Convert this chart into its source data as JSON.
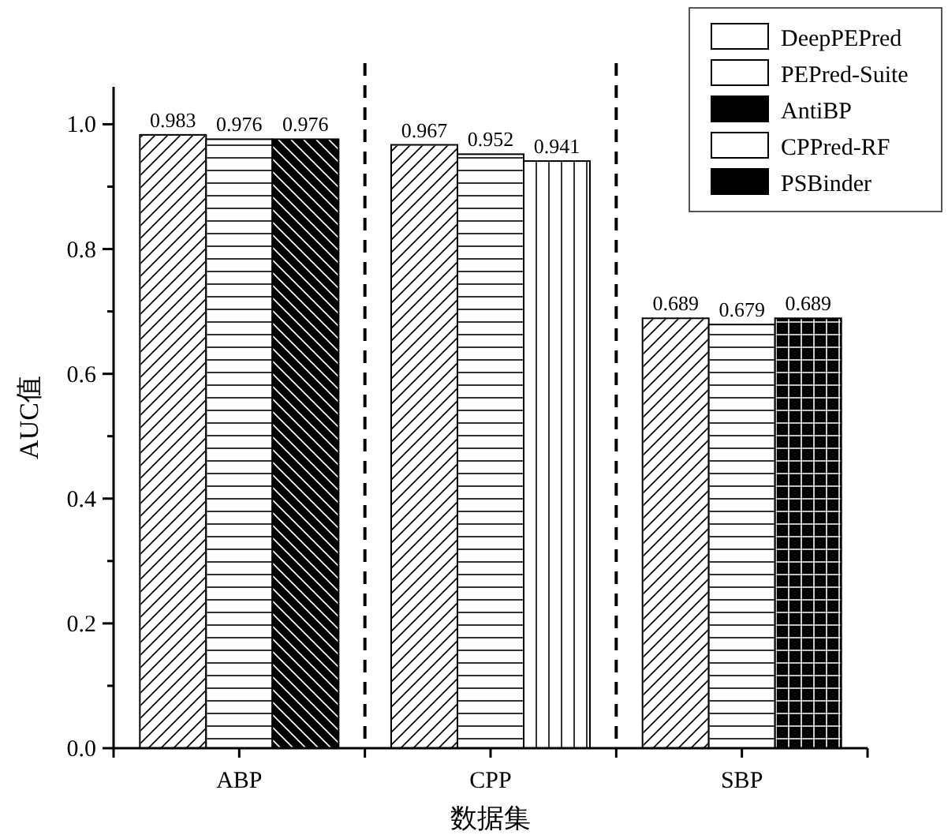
{
  "chart_data": {
    "type": "bar",
    "xlabel": "数据集",
    "ylabel": "AUC值",
    "categories": [
      "ABP",
      "CPP",
      "SBP"
    ],
    "series": [
      {
        "name": "DeepPEPred",
        "color": "#ffffff",
        "values": [
          0.983,
          0.967,
          0.689
        ]
      },
      {
        "name": "PEPred-Suite",
        "color": "#ffffff",
        "values": [
          0.976,
          0.952,
          0.679
        ]
      },
      {
        "name": "AntiBP",
        "color": "#000000",
        "values": [
          0.976,
          null,
          null
        ]
      },
      {
        "name": "CPPred-RF",
        "color": "#ffffff",
        "values": [
          null,
          0.941,
          null
        ]
      },
      {
        "name": "PSBinder",
        "color": "#000000",
        "values": [
          null,
          null,
          0.689
        ]
      }
    ],
    "ylim": [
      0,
      1.06
    ],
    "yticks": [
      {
        "value": 0,
        "label": "0.0"
      },
      {
        "value": 0.1,
        "label": null
      },
      {
        "value": 0.2,
        "label": "0.2"
      },
      {
        "value": 0.3,
        "label": null
      },
      {
        "value": 0.4,
        "label": "0.4"
      },
      {
        "value": 0.5,
        "label": null
      },
      {
        "value": 0.6,
        "label": "0.6"
      },
      {
        "value": 0.7,
        "label": null
      },
      {
        "value": 0.8,
        "label": "0.8"
      },
      {
        "value": 0.9,
        "label": null
      },
      {
        "value": 1,
        "label": "1.0"
      }
    ],
    "data_labels": true,
    "legend": "top right",
    "grid": false
  }
}
